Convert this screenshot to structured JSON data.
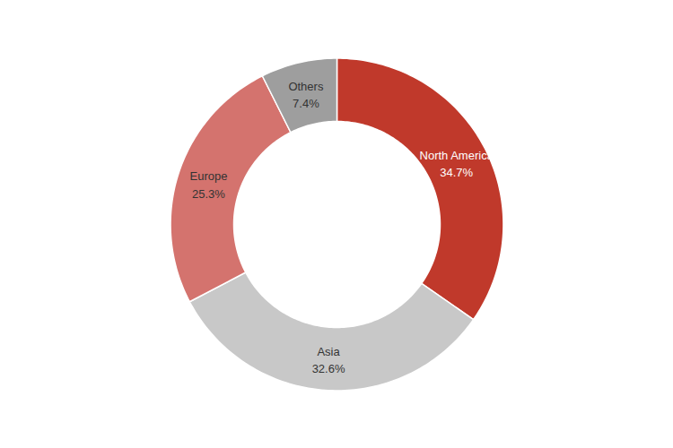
{
  "chart_data": {
    "type": "pie",
    "categories": [
      "North America",
      "Asia",
      "Europe",
      "Others"
    ],
    "values": [
      34.7,
      32.6,
      25.3,
      7.4
    ],
    "value_labels": [
      "34.7%",
      "32.6%",
      "25.3%",
      "7.4%"
    ],
    "colors": [
      "#c0392b",
      "#c8c8c8",
      "#d4736e",
      "#9e9e9e"
    ],
    "data_labels": true
  }
}
